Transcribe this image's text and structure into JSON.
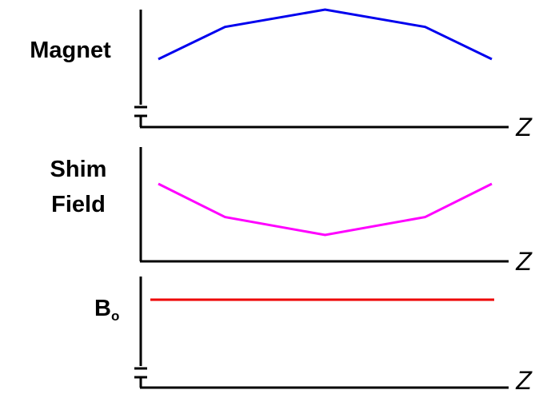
{
  "chart_data": [
    {
      "type": "line",
      "ylabel": "Magnet",
      "xlabel": "Z",
      "axis_break": true,
      "series": [
        {
          "color": "#0000ee",
          "x": [
            0,
            0.2,
            0.5,
            0.8,
            1.0
          ],
          "y": [
            0.0,
            0.65,
            1.0,
            0.65,
            0.0
          ]
        }
      ]
    },
    {
      "type": "line",
      "ylabel": [
        "Shim",
        "Field"
      ],
      "xlabel": "Z",
      "axis_break": false,
      "series": [
        {
          "color": "#ff00ff",
          "x": [
            0,
            0.2,
            0.5,
            0.8,
            1.0
          ],
          "y": [
            1.0,
            0.35,
            0.0,
            0.35,
            1.0
          ]
        }
      ]
    },
    {
      "type": "line",
      "ylabel": {
        "main": "B",
        "subscript": "o"
      },
      "xlabel": "Z",
      "axis_break": true,
      "series": [
        {
          "color": "#ee0000",
          "x": [
            0,
            1.0
          ],
          "y": [
            0.5,
            0.5
          ]
        }
      ]
    }
  ]
}
